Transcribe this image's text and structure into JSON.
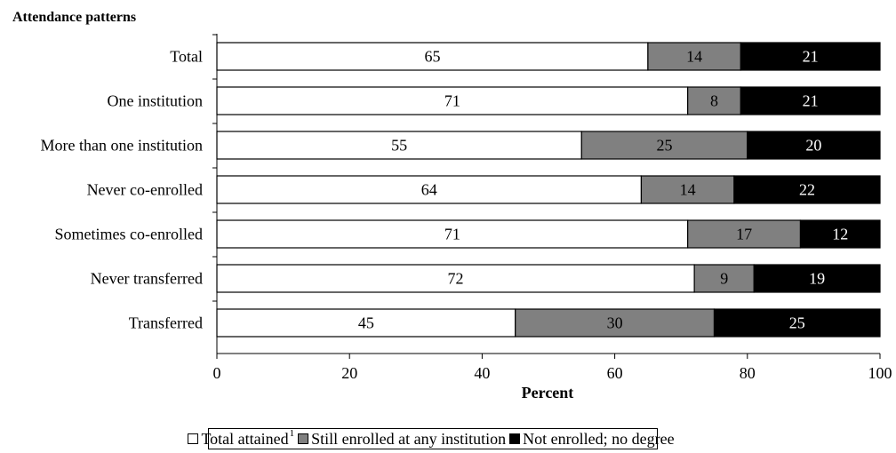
{
  "chart_data": {
    "type": "bar",
    "orientation": "horizontal",
    "stacked": true,
    "title": "Attendance patterns",
    "xlabel": "Percent",
    "ylabel": "",
    "xlim": [
      0,
      100
    ],
    "x_ticks": [
      "0",
      "20",
      "40",
      "60",
      "80",
      "100"
    ],
    "grid": false,
    "legend_position": "bottom-center",
    "categories": [
      "Total",
      "One institution",
      "More than one institution",
      "Never co-enrolled",
      "Sometimes co-enrolled",
      "Never transferred",
      "Transferred"
    ],
    "series": [
      {
        "name": "Total attained",
        "name_superscript": "1",
        "color": "#ffffff",
        "label_color": "#000000",
        "values": [
          65,
          71,
          55,
          64,
          71,
          72,
          45
        ]
      },
      {
        "name": "Still enrolled at any institution",
        "color": "#808080",
        "label_color": "#000000",
        "values": [
          14,
          8,
          25,
          14,
          17,
          9,
          30
        ]
      },
      {
        "name": "Not enrolled; no degree",
        "color": "#000000",
        "label_color": "#ffffff",
        "values": [
          21,
          21,
          20,
          22,
          12,
          19,
          25
        ]
      }
    ]
  }
}
